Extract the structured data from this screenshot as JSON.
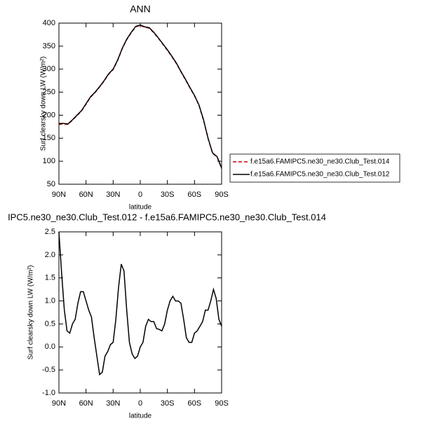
{
  "chart_data": [
    {
      "type": "line",
      "title": "ANN",
      "xlabel": "latitude",
      "ylabel": "Surf clearsky down LW (W/m²)",
      "x": [
        90,
        85,
        80,
        75,
        70,
        65,
        60,
        55,
        50,
        45,
        40,
        35,
        30,
        25,
        20,
        15,
        10,
        5,
        0,
        -5,
        -10,
        -15,
        -20,
        -25,
        -30,
        -35,
        -40,
        -45,
        -50,
        -55,
        -60,
        -65,
        -70,
        -75,
        -80,
        -85,
        -90
      ],
      "series": [
        {
          "name": "f.e15a6.FAMIPC5.ne30_ne30.Club_Test.014",
          "color": "#cc0000",
          "dash": "dashed",
          "values": [
            180,
            181,
            180,
            189,
            199,
            209,
            224,
            239,
            249,
            261,
            274,
            289,
            299,
            319,
            344,
            364,
            379,
            392,
            395,
            391,
            389,
            379,
            367,
            354,
            341,
            327,
            312,
            294,
            277,
            259,
            242,
            221,
            189,
            149,
            117,
            109,
            84
          ]
        },
        {
          "name": "f.e15a6.FAMIPC5.ne30_ne30.Club_Test.012",
          "color": "#000000",
          "dash": "solid",
          "values": [
            182,
            182,
            181,
            190,
            200,
            210,
            225,
            240,
            250,
            262,
            275,
            290,
            300,
            320,
            345,
            365,
            380,
            393,
            396,
            392,
            390,
            380,
            368,
            355,
            342,
            328,
            313,
            295,
            278,
            260,
            243,
            222,
            190,
            150,
            118,
            110,
            85
          ]
        }
      ],
      "xlim": [
        90,
        -90
      ],
      "xticks": [
        {
          "value": 90,
          "label": "90N"
        },
        {
          "value": 60,
          "label": "60N"
        },
        {
          "value": 30,
          "label": "30N"
        },
        0,
        {
          "value": -30,
          "label": "30S"
        },
        {
          "value": -60,
          "label": "60S"
        },
        {
          "value": -90,
          "label": "90S"
        }
      ],
      "ylim": [
        50,
        400
      ],
      "yticks": [
        50,
        100,
        150,
        200,
        250,
        300,
        350,
        400
      ],
      "legend": "outside-right"
    },
    {
      "type": "line",
      "title": "IPC5.ne30_ne30.Club_Test.012 - f.e15a6.FAMIPC5.ne30_ne30.Club_Test.014",
      "xlabel": "latitude",
      "ylabel": "Surf clearsky down LW (W/m²)",
      "x": [
        90,
        87,
        84,
        81,
        78,
        75,
        72,
        69,
        66,
        63,
        60,
        57,
        54,
        51,
        48,
        45,
        42,
        39,
        36,
        33,
        30,
        27,
        24,
        21,
        18,
        15,
        12,
        9,
        6,
        3,
        0,
        -3,
        -6,
        -9,
        -12,
        -15,
        -18,
        -21,
        -24,
        -27,
        -30,
        -33,
        -36,
        -39,
        -42,
        -45,
        -48,
        -51,
        -54,
        -57,
        -60,
        -63,
        -66,
        -69,
        -72,
        -75,
        -78,
        -81,
        -84,
        -87,
        -90
      ],
      "series": [
        {
          "color": "#000000",
          "dash": "solid",
          "values": [
            2.5,
            1.6,
            0.8,
            0.35,
            0.3,
            0.5,
            0.6,
            0.95,
            1.2,
            1.2,
            1.0,
            0.8,
            0.65,
            0.2,
            -0.2,
            -0.6,
            -0.55,
            -0.2,
            -0.1,
            0.05,
            0.1,
            0.6,
            1.3,
            1.8,
            1.65,
            0.8,
            0.1,
            -0.15,
            -0.25,
            -0.2,
            0.0,
            0.1,
            0.45,
            0.6,
            0.55,
            0.55,
            0.4,
            0.38,
            0.35,
            0.5,
            0.8,
            1.0,
            1.1,
            1.0,
            1.0,
            0.95,
            0.6,
            0.2,
            0.1,
            0.1,
            0.3,
            0.35,
            0.45,
            0.55,
            0.8,
            0.8,
            1.0,
            1.25,
            1.05,
            0.6,
            0.45
          ]
        }
      ],
      "xlim": [
        90,
        -90
      ],
      "xticks": [
        {
          "value": 90,
          "label": "90N"
        },
        {
          "value": 60,
          "label": "60N"
        },
        {
          "value": 30,
          "label": "30N"
        },
        0,
        {
          "value": -30,
          "label": "30S"
        },
        {
          "value": -60,
          "label": "60S"
        },
        {
          "value": -90,
          "label": "90S"
        }
      ],
      "ylim": [
        -1.0,
        2.5
      ],
      "yticks": [
        {
          "value": -1.0,
          "label": "-1.0"
        },
        -0.5,
        {
          "value": 0.0,
          "label": "0.0"
        },
        0.5,
        {
          "value": 1.0,
          "label": "1.0"
        },
        1.5,
        {
          "value": 2.0,
          "label": "2.0"
        },
        2.5
      ]
    }
  ]
}
